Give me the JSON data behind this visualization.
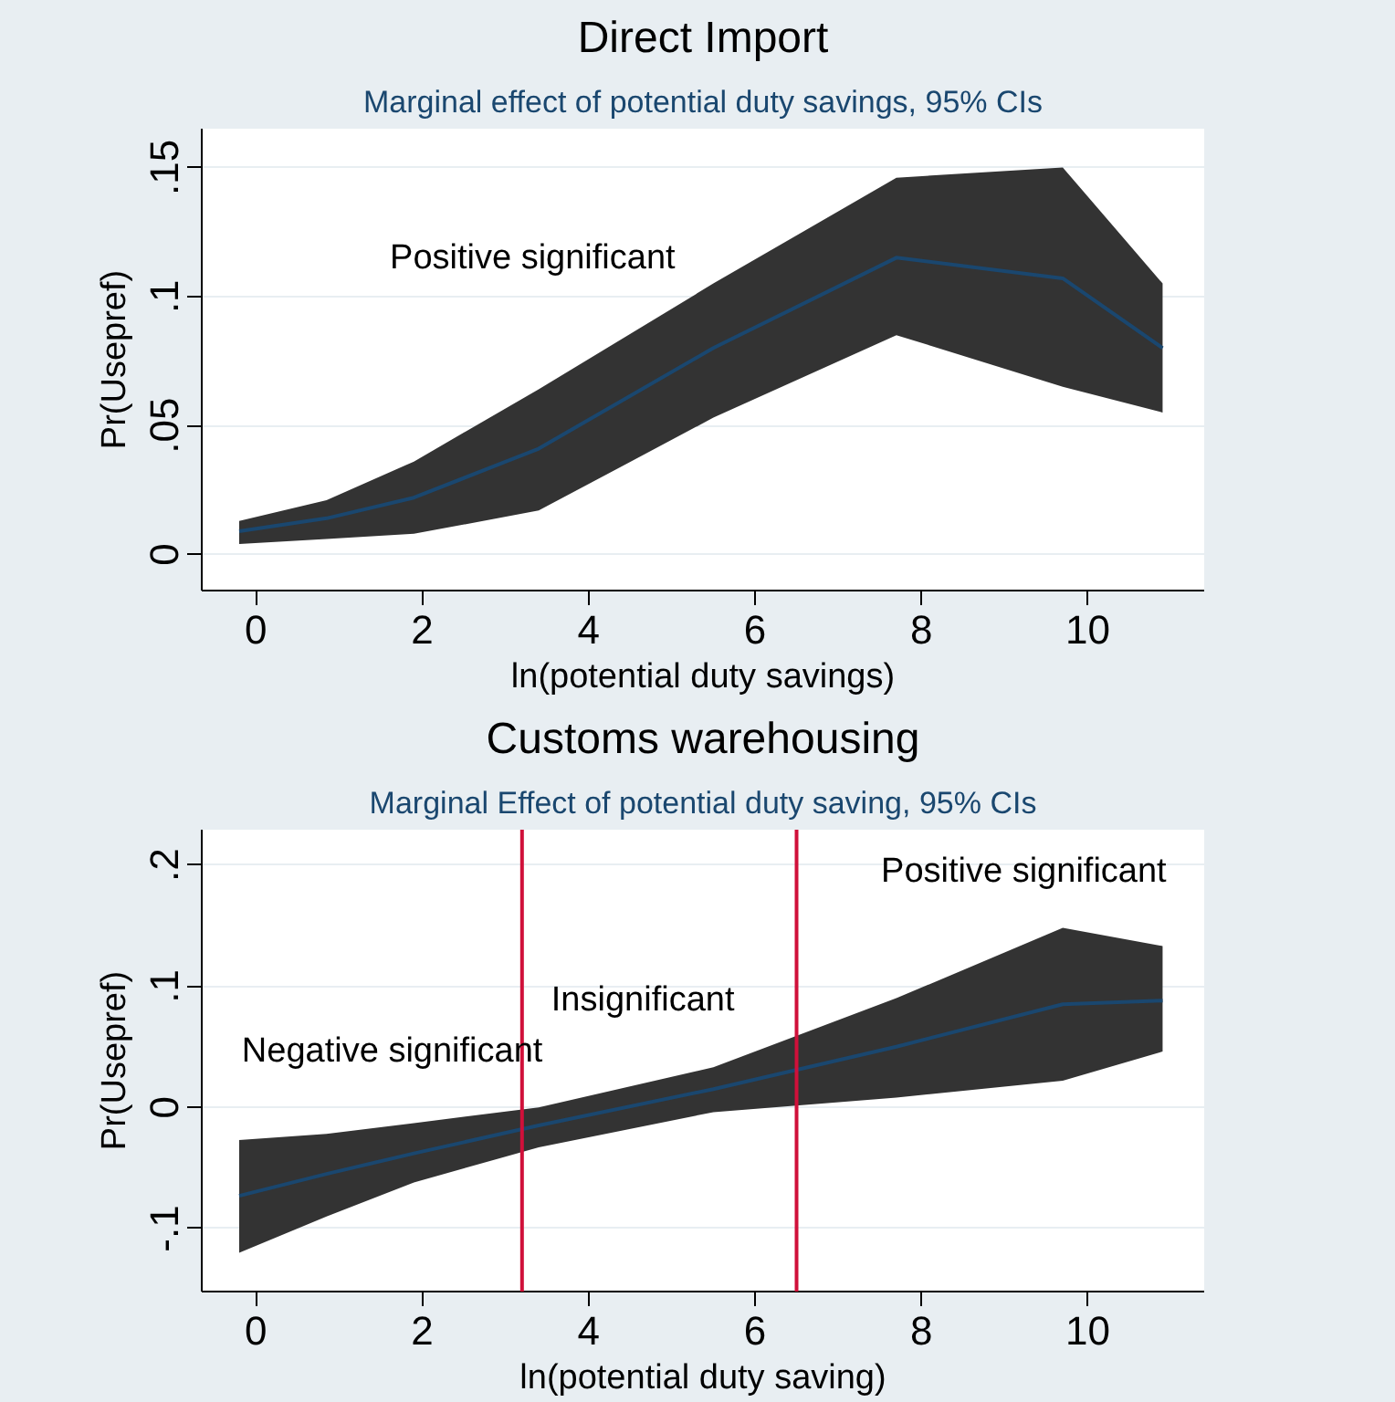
{
  "chart_data": [
    {
      "type": "line",
      "title": "Direct Import",
      "subtitle": "Marginal effect of potential duty savings, 95% CIs",
      "xlabel": "ln(potential duty savings)",
      "ylabel": "Pr(Usepref)",
      "x": [
        -0.2,
        0.85,
        1.9,
        3.4,
        5.5,
        7.7,
        9.7,
        10.9
      ],
      "series": [
        {
          "color": "#1a476f",
          "values": [
            0.009,
            0.014,
            0.022,
            0.041,
            0.08,
            0.115,
            0.107,
            0.08
          ],
          "lower": [
            0.004,
            0.006,
            0.008,
            0.017,
            0.053,
            0.085,
            0.065,
            0.055
          ],
          "upper": [
            0.013,
            0.021,
            0.036,
            0.064,
            0.105,
            0.146,
            0.15,
            0.105
          ]
        }
      ],
      "xlim": [
        -0.65,
        11.4
      ],
      "ylim": [
        -0.014,
        0.165
      ],
      "xticks": [
        0,
        2,
        4,
        6,
        8,
        10
      ],
      "yticks": [
        {
          "value": 0,
          "label": "0"
        },
        {
          "value": 0.05,
          "label": ".05"
        },
        {
          "value": 0.1,
          "label": ".1"
        },
        {
          "value": 0.15,
          "label": ".15"
        }
      ],
      "grid": "y",
      "annotations": [
        "Positive significant"
      ]
    },
    {
      "type": "line",
      "title": "Customs warehousing",
      "subtitle": "Marginal Effect of potential duty saving, 95% CIs",
      "xlabel": "ln(potential duty saving)",
      "ylabel": "Pr(Usepref)",
      "x": [
        -0.2,
        0.85,
        1.9,
        3.4,
        5.5,
        7.7,
        9.7,
        10.9
      ],
      "series": [
        {
          "color": "#1a476f",
          "values": [
            -0.073,
            -0.055,
            -0.038,
            -0.015,
            0.015,
            0.05,
            0.085,
            0.088
          ],
          "lower": [
            -0.12,
            -0.09,
            -0.062,
            -0.033,
            -0.004,
            0.008,
            0.022,
            0.046
          ],
          "upper": [
            -0.027,
            -0.022,
            -0.013,
            0.0,
            0.033,
            0.09,
            0.148,
            0.133
          ]
        }
      ],
      "xlim": [
        -0.65,
        11.4
      ],
      "ylim": [
        -0.152,
        0.229
      ],
      "xticks": [
        0,
        2,
        4,
        6,
        8,
        10
      ],
      "yticks": [
        {
          "value": -0.1,
          "label": "-.1"
        },
        {
          "value": 0,
          "label": "0"
        },
        {
          "value": 0.1,
          "label": ".1"
        },
        {
          "value": 0.2,
          "label": ".2"
        }
      ],
      "grid": "y",
      "ref_lines": [
        {
          "axis": "x",
          "value": 3.2,
          "color": "#d0103a"
        },
        {
          "axis": "x",
          "value": 6.5,
          "color": "#d0103a"
        }
      ],
      "annotations": [
        "Negative significant",
        "Insignificant",
        "Positive significant"
      ]
    }
  ]
}
